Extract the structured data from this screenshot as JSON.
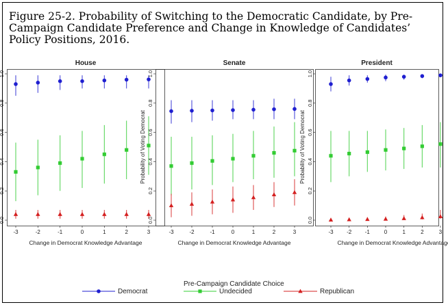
{
  "figure": {
    "caption": "Figure 25-2. Probability of Switching to the Democratic Candidate, by Pre-Campaign Candidate Preference and Change in Knowledge of Candidates’ Policy Positions, 2016."
  },
  "legend": {
    "title": "Pre-Campaign Candidate Choice",
    "entries": [
      {
        "name": "Democrat",
        "color": "#1f1fd0",
        "marker": "circle"
      },
      {
        "name": "Undecided",
        "color": "#33cc33",
        "marker": "square"
      },
      {
        "name": "Republican",
        "color": "#d42020",
        "marker": "triangle"
      }
    ]
  },
  "chart_data": [
    {
      "type": "scatter",
      "title": "House",
      "xlabel": "Change in Democrat Knowledge Advantage",
      "ylabel": "Probability of Voting Democrat",
      "x": [
        -3,
        -2,
        -1,
        0,
        1,
        2,
        3
      ],
      "xlim": [
        -3,
        3
      ],
      "ylim": [
        0,
        1
      ],
      "x_ticks": [
        "-3",
        "-2",
        "-1",
        "0",
        "1",
        "2",
        "3"
      ],
      "y_ticks": [
        "0.0",
        "0.2",
        "0.4",
        "0.6",
        "0.8",
        "1.0"
      ],
      "series": [
        {
          "name": "Democrat",
          "values": [
            0.93,
            0.94,
            0.95,
            0.95,
            0.955,
            0.96,
            0.962
          ],
          "lower": [
            0.85,
            0.87,
            0.89,
            0.9,
            0.9,
            0.9,
            0.9
          ],
          "upper": [
            0.99,
            0.99,
            0.99,
            0.99,
            0.99,
            0.99,
            0.99
          ]
        },
        {
          "name": "Undecided",
          "values": [
            0.33,
            0.36,
            0.39,
            0.42,
            0.45,
            0.48,
            0.51
          ],
          "lower": [
            0.13,
            0.17,
            0.2,
            0.22,
            0.25,
            0.28,
            0.31
          ],
          "upper": [
            0.53,
            0.55,
            0.58,
            0.61,
            0.65,
            0.68,
            0.71
          ]
        },
        {
          "name": "Republican",
          "values": [
            0.04,
            0.04,
            0.04,
            0.04,
            0.04,
            0.04,
            0.04
          ],
          "lower": [
            0.01,
            0.01,
            0.01,
            0.01,
            0.01,
            0.01,
            0.01
          ],
          "upper": [
            0.07,
            0.07,
            0.07,
            0.07,
            0.07,
            0.07,
            0.07
          ]
        }
      ]
    },
    {
      "type": "scatter",
      "title": "Senate",
      "xlabel": "Change in Democrat Knowledge Advantage",
      "ylabel": "Probability of Voting Democrat",
      "x": [
        -3,
        -2,
        -1,
        0,
        1,
        2,
        3
      ],
      "xlim": [
        -3,
        3
      ],
      "ylim": [
        0,
        1
      ],
      "x_ticks": [
        "-3",
        "-2",
        "-1",
        "0",
        "1",
        "2",
        "3"
      ],
      "y_ticks": [
        "0.0",
        "0.2",
        "0.4",
        "0.6",
        "0.8",
        "1.0"
      ],
      "series": [
        {
          "name": "Democrat",
          "values": [
            0.745,
            0.748,
            0.75,
            0.752,
            0.755,
            0.758,
            0.76
          ],
          "lower": [
            0.66,
            0.67,
            0.68,
            0.69,
            0.69,
            0.69,
            0.69
          ],
          "upper": [
            0.82,
            0.82,
            0.82,
            0.82,
            0.82,
            0.83,
            0.83
          ]
        },
        {
          "name": "Undecided",
          "values": [
            0.37,
            0.39,
            0.405,
            0.42,
            0.44,
            0.46,
            0.475
          ],
          "lower": [
            0.17,
            0.21,
            0.24,
            0.26,
            0.28,
            0.29,
            0.3
          ],
          "upper": [
            0.57,
            0.57,
            0.58,
            0.59,
            0.61,
            0.64,
            0.67
          ]
        },
        {
          "name": "Republican",
          "values": [
            0.1,
            0.11,
            0.125,
            0.14,
            0.155,
            0.175,
            0.19
          ],
          "lower": [
            0.02,
            0.03,
            0.04,
            0.05,
            0.07,
            0.09,
            0.1
          ],
          "upper": [
            0.18,
            0.19,
            0.21,
            0.23,
            0.24,
            0.26,
            0.28
          ]
        }
      ]
    },
    {
      "type": "scatter",
      "title": "President",
      "xlabel": "Change in Democrat Knowledge Advantage",
      "ylabel": "Probability of Voting Democrat",
      "x": [
        -3,
        -2,
        -1,
        0,
        1,
        2,
        3
      ],
      "xlim": [
        -3,
        3
      ],
      "ylim": [
        0,
        1
      ],
      "x_ticks": [
        "-3",
        "-2",
        "-1",
        "0",
        "1",
        "2",
        "3"
      ],
      "y_ticks": [
        "0.0",
        "0.2",
        "0.4",
        "0.6",
        "0.8",
        "1.0"
      ],
      "series": [
        {
          "name": "Democrat",
          "values": [
            0.93,
            0.955,
            0.965,
            0.975,
            0.98,
            0.985,
            0.99
          ],
          "lower": [
            0.88,
            0.92,
            0.94,
            0.95,
            0.96,
            0.97,
            0.98
          ],
          "upper": [
            0.98,
            0.99,
            0.99,
            0.995,
            0.995,
            0.995,
            0.998
          ]
        },
        {
          "name": "Undecided",
          "values": [
            0.44,
            0.455,
            0.465,
            0.48,
            0.49,
            0.505,
            0.52
          ],
          "lower": [
            0.26,
            0.3,
            0.33,
            0.34,
            0.35,
            0.36,
            0.36
          ],
          "upper": [
            0.61,
            0.61,
            0.61,
            0.62,
            0.63,
            0.65,
            0.67
          ]
        },
        {
          "name": "Republican",
          "values": [
            0.002,
            0.004,
            0.006,
            0.008,
            0.012,
            0.018,
            0.025
          ],
          "lower": [
            0.0,
            0.0,
            0.0,
            0.0,
            0.0,
            0.005,
            0.01
          ],
          "upper": [
            0.01,
            0.015,
            0.02,
            0.025,
            0.035,
            0.045,
            0.07
          ]
        }
      ]
    }
  ]
}
